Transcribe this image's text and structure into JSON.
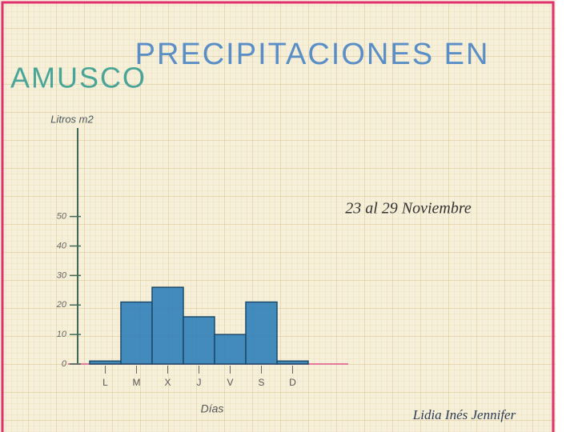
{
  "chart_data": {
    "type": "bar",
    "title": [
      "PRECIPITACIONES EN",
      "AMUSCO"
    ],
    "subtitle": "23 al 29 Noviembre",
    "y_label": "Litros m2",
    "x_label": "Días",
    "annotation": "Lidia Inés Jennifer",
    "categories": [
      "L",
      "M",
      "X",
      "J",
      "V",
      "S",
      "D"
    ],
    "values": [
      1,
      21,
      26,
      16,
      10,
      21,
      1
    ],
    "color": "#2f80b8",
    "ylim": [
      0,
      80
    ],
    "yticks": [
      0,
      10,
      20,
      30,
      40,
      50
    ],
    "grid": false
  }
}
